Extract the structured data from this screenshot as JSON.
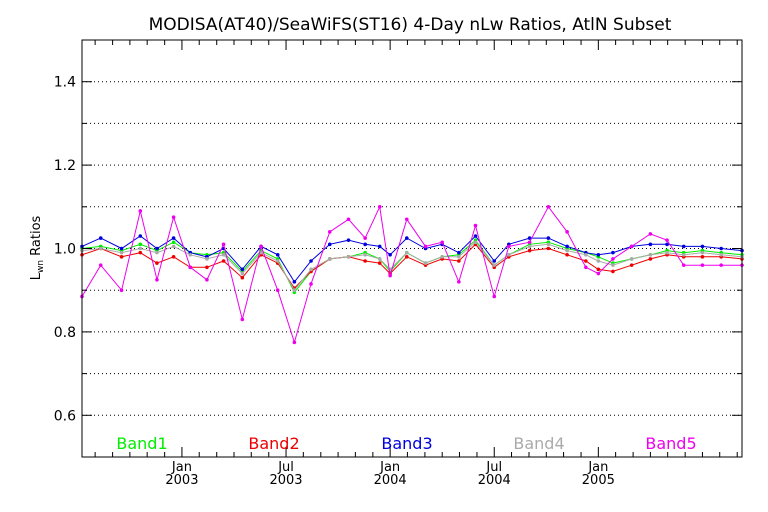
{
  "chart_data": {
    "type": "line",
    "title": "MODISA(AT40)/SeaWiFS(ST16) 4-Day nLw Ratios, AtlN Subset",
    "ylabel": "L_wn Ratios",
    "ylabel_main": "L",
    "ylabel_sub": "wn",
    "ylabel_rest": " Ratios",
    "xlabel": "",
    "ylim": [
      0.5,
      1.5
    ],
    "xlim": [
      2002.52,
      2005.69
    ],
    "grid": "horizontal dotted at 0.1 intervals",
    "yticks": [
      {
        "value": 0.6,
        "label": "0.6"
      },
      {
        "value": 0.8,
        "label": "0.8"
      },
      {
        "value": 1.0,
        "label": "1.0"
      },
      {
        "value": 1.2,
        "label": "1.2"
      },
      {
        "value": 1.4,
        "label": "1.4"
      }
    ],
    "yminor": [
      0.5,
      0.7,
      0.9,
      1.1,
      1.3
    ],
    "xticks": [
      {
        "value": 2003.0,
        "label1": "Jan",
        "label2": "2003"
      },
      {
        "value": 2003.5,
        "label1": "Jul",
        "label2": "2003"
      },
      {
        "value": 2004.0,
        "label1": "Jan",
        "label2": "2004"
      },
      {
        "value": 2004.5,
        "label1": "Jul",
        "label2": "2004"
      },
      {
        "value": 2005.0,
        "label1": "Jan",
        "label2": "2005"
      }
    ],
    "xminor": [
      2002.583,
      2002.667,
      2002.75,
      2002.833,
      2002.917,
      2003.083,
      2003.167,
      2003.25,
      2003.333,
      2003.417,
      2003.583,
      2003.667,
      2003.75,
      2003.833,
      2003.917,
      2004.083,
      2004.167,
      2004.25,
      2004.333,
      2004.417,
      2004.583,
      2004.667,
      2004.75,
      2004.833,
      2004.917,
      2005.083,
      2005.167,
      2005.25,
      2005.333,
      2005.417,
      2005.5,
      2005.583,
      2005.667
    ],
    "x": [
      2002.52,
      2002.61,
      2002.71,
      2002.8,
      2002.88,
      2002.96,
      2003.04,
      2003.12,
      2003.2,
      2003.29,
      2003.38,
      2003.46,
      2003.54,
      2003.62,
      2003.71,
      2003.8,
      2003.88,
      2003.95,
      2004.0,
      2004.08,
      2004.17,
      2004.25,
      2004.33,
      2004.41,
      2004.5,
      2004.57,
      2004.67,
      2004.76,
      2004.85,
      2004.94,
      2005.0,
      2005.07,
      2005.16,
      2005.25,
      2005.33,
      2005.41,
      2005.5,
      2005.59,
      2005.69
    ],
    "series": [
      {
        "name": "Band1",
        "color": "#00ee00",
        "values": [
          1.0,
          1.005,
          0.995,
          1.01,
          0.995,
          1.015,
          0.99,
          0.985,
          0.99,
          0.945,
          0.995,
          0.975,
          0.895,
          0.945,
          0.975,
          0.98,
          0.99,
          0.975,
          0.945,
          0.99,
          0.965,
          0.98,
          0.985,
          1.02,
          0.96,
          0.985,
          1.01,
          1.015,
          1.0,
          0.99,
          0.98,
          0.965,
          0.975,
          0.985,
          0.995,
          0.99,
          0.995,
          0.99,
          0.985
        ]
      },
      {
        "name": "Band2",
        "color": "#ee0000",
        "values": [
          0.985,
          1.0,
          0.98,
          0.99,
          0.965,
          0.98,
          0.955,
          0.955,
          0.97,
          0.93,
          0.985,
          0.965,
          0.905,
          0.945,
          0.975,
          0.98,
          0.97,
          0.965,
          0.94,
          0.98,
          0.96,
          0.975,
          0.97,
          1.01,
          0.955,
          0.98,
          0.995,
          1.0,
          0.985,
          0.97,
          0.95,
          0.945,
          0.96,
          0.975,
          0.985,
          0.98,
          0.98,
          0.98,
          0.975
        ]
      },
      {
        "name": "Band3",
        "color": "#0000dd",
        "values": [
          1.005,
          1.025,
          1.0,
          1.03,
          1.0,
          1.025,
          0.99,
          0.98,
          1.0,
          0.95,
          1.005,
          0.985,
          0.92,
          0.97,
          1.01,
          1.02,
          1.01,
          1.005,
          0.985,
          1.025,
          1.0,
          1.01,
          0.99,
          1.03,
          0.97,
          1.01,
          1.025,
          1.025,
          1.005,
          0.99,
          0.985,
          0.99,
          1.005,
          1.01,
          1.01,
          1.005,
          1.005,
          1.0,
          0.995
        ]
      },
      {
        "name": "Band4",
        "color": "#aaaaaa",
        "values": [
          0.995,
          1.0,
          0.99,
          1.0,
          0.99,
          1.005,
          0.985,
          0.975,
          0.985,
          0.94,
          0.99,
          0.97,
          0.9,
          0.95,
          0.975,
          0.98,
          0.985,
          0.975,
          0.95,
          0.99,
          0.965,
          0.98,
          0.98,
          1.015,
          0.96,
          0.985,
          1.005,
          1.01,
          0.995,
          0.985,
          0.97,
          0.96,
          0.975,
          0.985,
          0.99,
          0.985,
          0.99,
          0.985,
          0.98
        ]
      },
      {
        "name": "Band5",
        "color": "#ee00ee",
        "values": [
          0.885,
          0.96,
          0.9,
          1.09,
          0.925,
          1.075,
          0.955,
          0.925,
          1.01,
          0.83,
          1.005,
          0.9,
          0.775,
          0.915,
          1.04,
          1.07,
          1.025,
          1.1,
          0.935,
          1.07,
          1.005,
          1.015,
          0.92,
          1.055,
          0.885,
          1.005,
          1.015,
          1.1,
          1.04,
          0.955,
          0.94,
          0.975,
          1.005,
          1.035,
          1.02,
          0.96,
          0.96,
          0.96,
          0.96
        ]
      }
    ],
    "legend_placement": "bottom inside plot, horizontal row"
  }
}
